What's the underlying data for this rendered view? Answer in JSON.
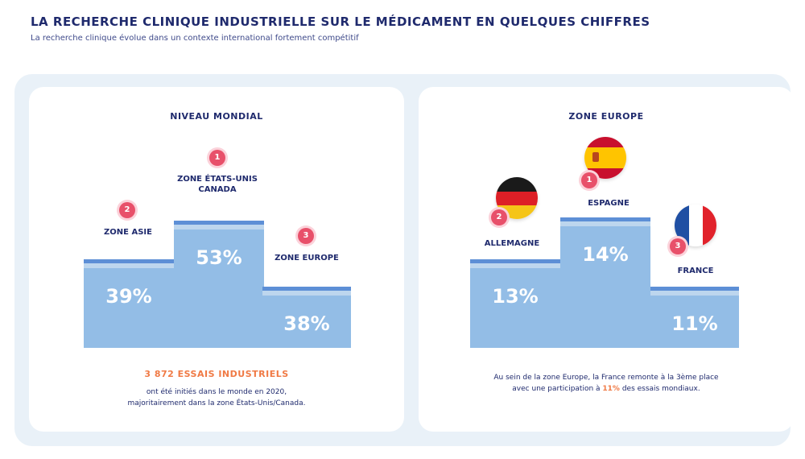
{
  "header": {
    "title": "LA RECHERCHE CLINIQUE INDUSTRIELLE SUR LE MÉDICAMENT EN QUELQUES CHIFFRES",
    "subtitle": "La recherche clinique évolue dans un contexte international fortement compétitif"
  },
  "colors": {
    "accent": "#e8506a",
    "highlight": "#f07a45",
    "step": "#93bde6",
    "step_top": "#5d8fd6",
    "text": "#1f2a6d"
  },
  "chart_data": [
    {
      "type": "bar",
      "title": "NIVEAU MONDIAL",
      "categories": [
        "ZONE ASIE",
        "ZONE ÉTATS-UNIS CANADA",
        "ZONE EUROPE"
      ],
      "ranks": [
        "2",
        "1",
        "3"
      ],
      "values": [
        39,
        53,
        38
      ],
      "labels": [
        "39%",
        "53%",
        "38%"
      ],
      "footer_highlight": "3 872 ESSAIS INDUSTRIELS",
      "footer_lines": [
        "ont été initiés dans le monde en 2020,",
        "majoritairement dans la zone États-Unis/Canada."
      ]
    },
    {
      "type": "bar",
      "title": "ZONE EUROPE",
      "categories": [
        "ALLEMAGNE",
        "ESPAGNE",
        "FRANCE"
      ],
      "ranks": [
        "2",
        "1",
        "3"
      ],
      "values": [
        13,
        14,
        11
      ],
      "labels": [
        "13%",
        "14%",
        "11%"
      ],
      "flags": [
        "germany-flag",
        "spain-flag",
        "france-flag"
      ],
      "footer_line1": "Au sein de la zone Europe, la France remonte à la 3ème place",
      "footer_line2_pre": "avec une participation à ",
      "footer_line2_hl": "11%",
      "footer_line2_post": " des essais mondiaux."
    }
  ]
}
